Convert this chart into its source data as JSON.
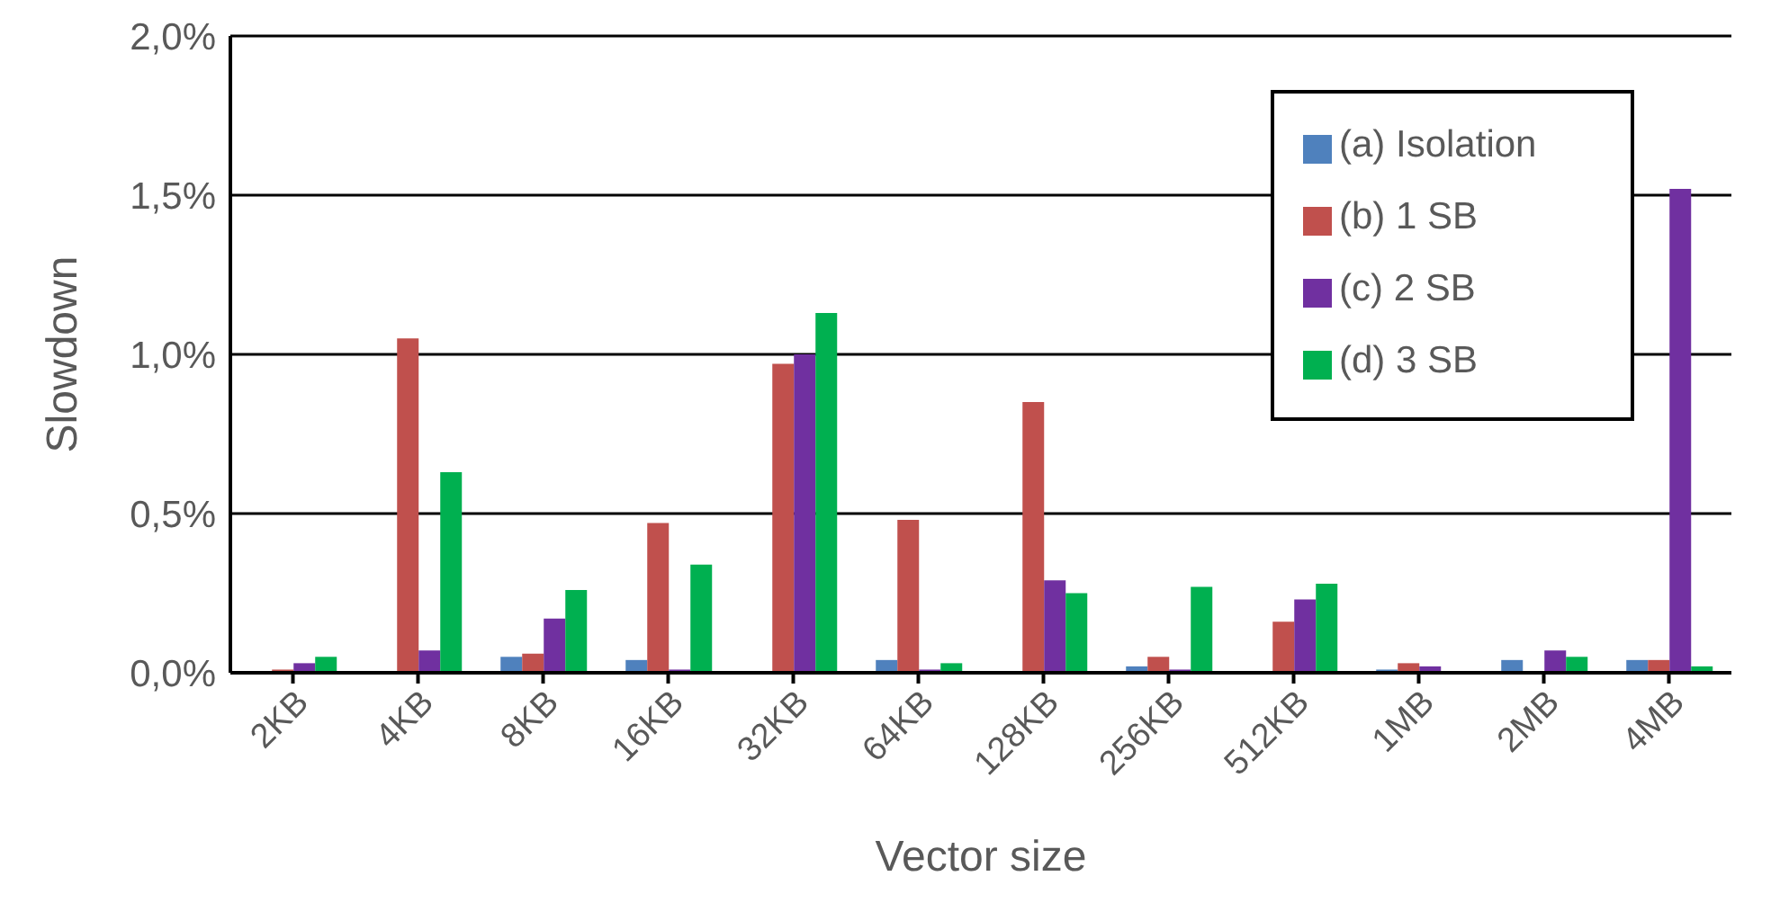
{
  "chart_data": {
    "type": "bar",
    "xlabel": "Vector size",
    "ylabel": "Slowdown",
    "categories": [
      "2KB",
      "4KB",
      "8KB",
      "16KB",
      "32KB",
      "64KB",
      "128KB",
      "256KB",
      "512KB",
      "1MB",
      "2MB",
      "4MB"
    ],
    "series": [
      {
        "name": "(a) Isolation",
        "color": "#4f81bd",
        "values": [
          0,
          0,
          0.05,
          0.04,
          0,
          0.04,
          0,
          0.02,
          0,
          0.01,
          0.04,
          0.04
        ]
      },
      {
        "name": "(b) 1 SB",
        "color": "#c0504d",
        "values": [
          0.01,
          1.05,
          0.06,
          0.47,
          0.97,
          0.48,
          0.85,
          0.05,
          0.16,
          0.03,
          0,
          0.04
        ]
      },
      {
        "name": "(c) 2 SB",
        "color": "#7030a0",
        "values": [
          0.03,
          0.07,
          0.17,
          0.01,
          1.0,
          0.01,
          0.29,
          0.01,
          0.23,
          0.02,
          0.07,
          1.52
        ]
      },
      {
        "name": "(d) 3 SB",
        "color": "#00b050",
        "values": [
          0.05,
          0.63,
          0.26,
          0.34,
          1.13,
          0.03,
          0.25,
          0.27,
          0.28,
          0,
          0.05,
          0.02
        ]
      }
    ],
    "ylim": [
      0,
      2
    ],
    "yticks": [
      {
        "value": 0,
        "label": "0,0%"
      },
      {
        "value": 0.5,
        "label": "0,5%"
      },
      {
        "value": 1,
        "label": "1,0%"
      },
      {
        "value": 1.5,
        "label": "1,5%"
      },
      {
        "value": 2,
        "label": "2,0%"
      }
    ],
    "grid": "y",
    "legend": "top right"
  }
}
